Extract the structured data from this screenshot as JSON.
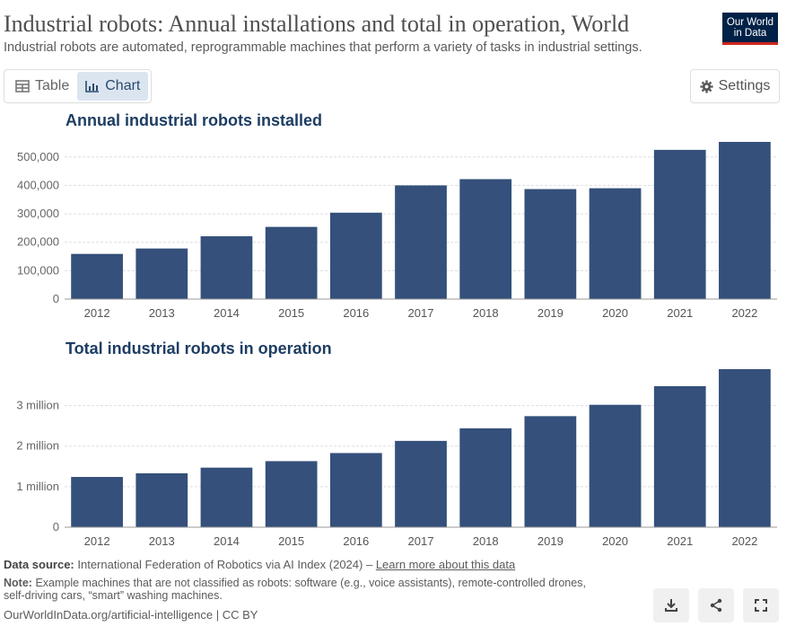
{
  "header": {
    "title": "Industrial robots: Annual installations and total in operation, World",
    "subtitle": "Industrial robots are automated, reprogrammable machines that perform a variety of tasks in industrial settings.",
    "logo_line1": "Our World",
    "logo_line2": "in Data"
  },
  "toolbar": {
    "tab_table": "Table",
    "tab_chart": "Chart",
    "settings": "Settings"
  },
  "colors": {
    "bar": "#34507b",
    "grid": "#dddddd",
    "axis": "#999999"
  },
  "chart_data": [
    {
      "type": "bar",
      "title": "Annual industrial robots installed",
      "categories": [
        "2012",
        "2013",
        "2014",
        "2015",
        "2016",
        "2017",
        "2018",
        "2019",
        "2020",
        "2021",
        "2022"
      ],
      "values": [
        159000,
        178000,
        221000,
        254000,
        304000,
        400000,
        422000,
        387000,
        390000,
        525000,
        553000
      ],
      "ylim": [
        0,
        553000
      ],
      "yticks": [
        0,
        100000,
        200000,
        300000,
        400000,
        500000
      ],
      "ytick_labels": [
        "0",
        "100,000",
        "200,000",
        "300,000",
        "400,000",
        "500,000"
      ],
      "grid": true
    },
    {
      "type": "bar",
      "title": "Total industrial robots in operation",
      "categories": [
        "2012",
        "2013",
        "2014",
        "2015",
        "2016",
        "2017",
        "2018",
        "2019",
        "2020",
        "2021",
        "2022"
      ],
      "values": [
        1240000,
        1330000,
        1470000,
        1630000,
        1830000,
        2130000,
        2440000,
        2740000,
        3020000,
        3480000,
        3900000
      ],
      "ylim": [
        0,
        3900000
      ],
      "yticks": [
        0,
        1000000,
        2000000,
        3000000
      ],
      "ytick_labels": [
        "0",
        "1 million",
        "2 million",
        "3 million"
      ],
      "grid": true
    }
  ],
  "footer": {
    "source_label": "Data source:",
    "source_text": "International Federation of Robotics via AI Index (2024) –",
    "source_link": "Learn more about this data",
    "note_label": "Note:",
    "note_text": "Example machines that are not classified as robots: software (e.g., voice assistants), remote-controlled drones, self-driving cars, “smart” washing machines.",
    "credit": "OurWorldInData.org/artificial-intelligence | CC BY"
  }
}
